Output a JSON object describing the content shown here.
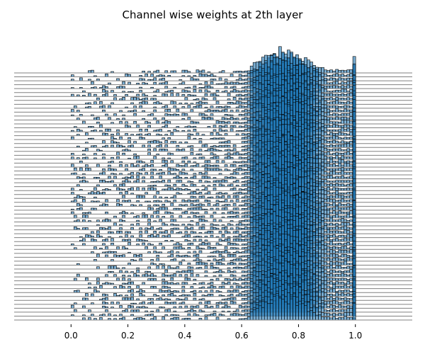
{
  "chart_data": {
    "type": "histogram-ridgeline",
    "title": "Channel wise weights at 2th layer",
    "xlabel": "",
    "ylabel": "",
    "xlim": [
      -0.2,
      1.2
    ],
    "x_ticks": [
      0.0,
      0.2,
      0.4,
      0.6,
      0.8,
      1.0
    ],
    "x_tick_labels": [
      "0.0",
      "0.2",
      "0.4",
      "0.6",
      "0.8",
      "1.0"
    ],
    "series_count": 64,
    "bin_width": 0.01,
    "value_range": [
      0.0,
      1.0
    ],
    "bulk_range": [
      0.63,
      0.9
    ],
    "mode": 0.75,
    "stacked_height_at_1_0": "tall spike",
    "fill_color": "#1f77b4",
    "edge_color": "#000000",
    "baseline_color": "#808080",
    "grid": false,
    "legend": "none"
  }
}
